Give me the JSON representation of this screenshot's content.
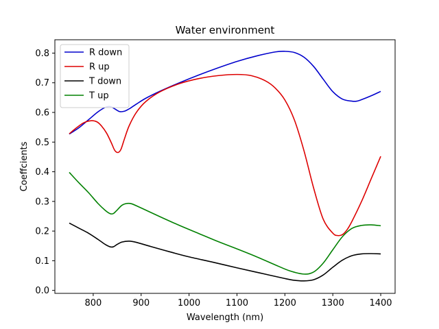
{
  "chart_data": {
    "type": "line",
    "title": "Water environment",
    "xlabel": "Wavelength (nm)",
    "ylabel": "Coeffcients",
    "xlim": [
      720,
      1430
    ],
    "ylim": [
      -0.01,
      0.845
    ],
    "xticks": [
      800,
      900,
      1000,
      1100,
      1200,
      1300,
      1400
    ],
    "xtick_labels": [
      "800",
      "900",
      "1000",
      "1100",
      "1200",
      "1300",
      "1400"
    ],
    "yticks": [
      0.0,
      0.1,
      0.2,
      0.3,
      0.4,
      0.5,
      0.6,
      0.7,
      0.8
    ],
    "ytick_labels": [
      "0.0",
      "0.1",
      "0.2",
      "0.3",
      "0.4",
      "0.5",
      "0.6",
      "0.7",
      "0.8"
    ],
    "grid": false,
    "legend_position": "top-left",
    "series": [
      {
        "name": "R down",
        "color": "#0000cc",
        "x": [
          750,
          770,
          790,
          810,
          825,
          835,
          845,
          855,
          865,
          875,
          890,
          910,
          940,
          980,
          1020,
          1060,
          1100,
          1140,
          1180,
          1200,
          1220,
          1240,
          1260,
          1280,
          1300,
          1320,
          1340,
          1350,
          1360,
          1380,
          1400
        ],
        "y": [
          0.527,
          0.548,
          0.575,
          0.602,
          0.617,
          0.62,
          0.612,
          0.603,
          0.604,
          0.612,
          0.628,
          0.648,
          0.672,
          0.7,
          0.726,
          0.75,
          0.772,
          0.79,
          0.804,
          0.806,
          0.802,
          0.786,
          0.755,
          0.712,
          0.67,
          0.645,
          0.638,
          0.638,
          0.643,
          0.656,
          0.671
        ]
      },
      {
        "name": "R up",
        "color": "#dd0000",
        "x": [
          750,
          765,
          780,
          795,
          808,
          818,
          828,
          838,
          845,
          852,
          858,
          865,
          875,
          890,
          910,
          940,
          980,
          1020,
          1060,
          1100,
          1130,
          1160,
          1180,
          1200,
          1220,
          1240,
          1260,
          1280,
          1300,
          1310,
          1320,
          1330,
          1340,
          1360,
          1380,
          1400
        ],
        "y": [
          0.528,
          0.548,
          0.565,
          0.572,
          0.568,
          0.553,
          0.53,
          0.497,
          0.472,
          0.465,
          0.476,
          0.51,
          0.555,
          0.6,
          0.637,
          0.67,
          0.697,
          0.714,
          0.724,
          0.728,
          0.724,
          0.706,
          0.682,
          0.642,
          0.574,
          0.47,
          0.345,
          0.24,
          0.193,
          0.185,
          0.188,
          0.205,
          0.233,
          0.3,
          0.376,
          0.452
        ]
      },
      {
        "name": "T down",
        "color": "#000000",
        "x": [
          750,
          770,
          790,
          810,
          825,
          835,
          842,
          850,
          860,
          875,
          890,
          920,
          960,
          1000,
          1050,
          1100,
          1150,
          1200,
          1220,
          1240,
          1260,
          1280,
          1300,
          1320,
          1340,
          1360,
          1380,
          1400
        ],
        "y": [
          0.227,
          0.21,
          0.193,
          0.172,
          0.155,
          0.147,
          0.147,
          0.155,
          0.163,
          0.166,
          0.162,
          0.148,
          0.13,
          0.113,
          0.095,
          0.076,
          0.058,
          0.04,
          0.034,
          0.032,
          0.036,
          0.052,
          0.078,
          0.102,
          0.117,
          0.123,
          0.124,
          0.123
        ]
      },
      {
        "name": "T up",
        "color": "#008000",
        "x": [
          750,
          770,
          790,
          810,
          825,
          835,
          842,
          850,
          860,
          870,
          880,
          900,
          940,
          980,
          1020,
          1060,
          1100,
          1140,
          1180,
          1210,
          1240,
          1260,
          1280,
          1300,
          1320,
          1340,
          1360,
          1380,
          1400
        ],
        "y": [
          0.398,
          0.363,
          0.33,
          0.293,
          0.27,
          0.259,
          0.259,
          0.271,
          0.287,
          0.293,
          0.292,
          0.278,
          0.248,
          0.219,
          0.192,
          0.165,
          0.14,
          0.114,
          0.086,
          0.066,
          0.055,
          0.062,
          0.092,
          0.137,
          0.181,
          0.209,
          0.219,
          0.221,
          0.218
        ]
      }
    ]
  }
}
